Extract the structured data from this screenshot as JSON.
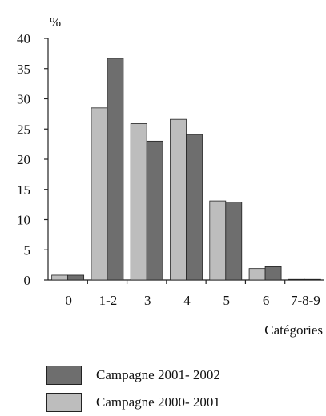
{
  "chart_data": {
    "type": "bar",
    "ylabel": "%",
    "xlabel": "Catégories",
    "ylim": [
      0,
      40
    ],
    "yticks": [
      0,
      5,
      10,
      15,
      20,
      25,
      30,
      35,
      40
    ],
    "categories": [
      "0",
      "1-2",
      "3",
      "4",
      "5",
      "6",
      "7-8-9"
    ],
    "series": [
      {
        "name": "Campagne 2000- 2001",
        "color": "#bdbdbd",
        "values": [
          0.8,
          28.5,
          25.9,
          26.6,
          13.1,
          1.9,
          0.1
        ]
      },
      {
        "name": "Campagne 2001- 2002",
        "color": "#6e6e6e",
        "values": [
          0.8,
          36.7,
          23.0,
          24.1,
          12.9,
          2.2,
          0.1
        ]
      }
    ],
    "legend": [
      {
        "label": "Campagne 2001- 2002",
        "color": "#6e6e6e"
      },
      {
        "label": "Campagne 2000- 2001",
        "color": "#bdbdbd"
      }
    ],
    "grid": false,
    "legend_position": "bottom-left"
  }
}
